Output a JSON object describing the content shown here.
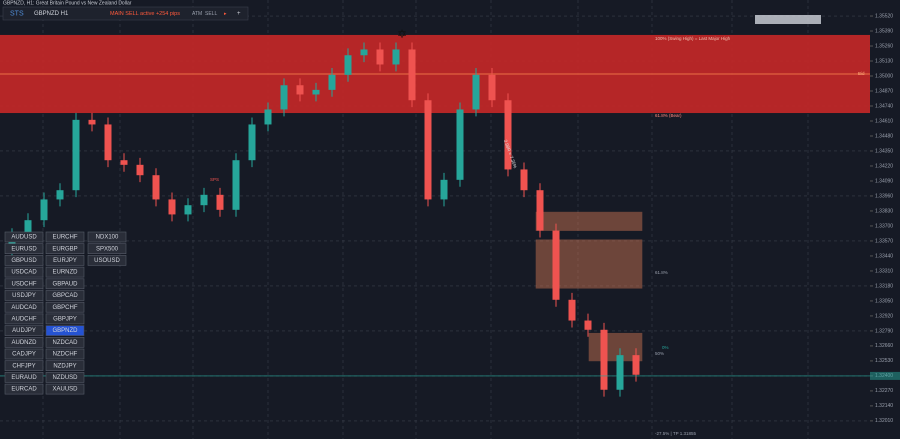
{
  "window_title": "GBPNZD, H1: Great Britain Pound vs New Zealand Dollar",
  "toolbar": {
    "brand": "STS",
    "symbol": "GBPNZD H1",
    "status": "MAIN SELL active +254 pips",
    "mode": "ATM",
    "action": "SELL",
    "add": "+"
  },
  "chart_data": {
    "type": "candlestick",
    "ylim": [
      1.31853,
      1.35659
    ],
    "yticks": [
      {
        "value": 1.3552,
        "label": "1.35520"
      },
      {
        "value": 1.3539,
        "label": "1.35390"
      },
      {
        "value": 1.3526,
        "label": "1.35260"
      },
      {
        "value": 1.3513,
        "label": "1.35130"
      },
      {
        "value": 1.35,
        "label": "1.35000"
      },
      {
        "value": 1.3487,
        "label": "1.34870"
      },
      {
        "value": 1.3474,
        "label": "1.34740"
      },
      {
        "value": 1.3461,
        "label": "1.34610"
      },
      {
        "value": 1.3448,
        "label": "1.34480"
      },
      {
        "value": 1.3435,
        "label": "1.34350"
      },
      {
        "value": 1.3422,
        "label": "1.34220"
      },
      {
        "value": 1.3409,
        "label": "1.34090"
      },
      {
        "value": 1.3396,
        "label": "1.33960"
      },
      {
        "value": 1.3383,
        "label": "1.33830"
      },
      {
        "value": 1.337,
        "label": "1.33700"
      },
      {
        "value": 1.3357,
        "label": "1.33570"
      },
      {
        "value": 1.3344,
        "label": "1.33440"
      },
      {
        "value": 1.3331,
        "label": "1.33310"
      },
      {
        "value": 1.3318,
        "label": "1.33180"
      },
      {
        "value": 1.3305,
        "label": "1.33050"
      },
      {
        "value": 1.3292,
        "label": "1.32920"
      },
      {
        "value": 1.3279,
        "label": "1.32790"
      },
      {
        "value": 1.3266,
        "label": "1.32660"
      },
      {
        "value": 1.3253,
        "label": "1.32530"
      },
      {
        "value": 1.324,
        "label": "1.32400"
      },
      {
        "value": 1.3227,
        "label": "1.32270"
      },
      {
        "value": 1.3214,
        "label": "1.32140"
      },
      {
        "value": 1.3201,
        "label": "1.32010"
      }
    ],
    "candles": [
      [
        1.335,
        1.3368,
        1.3344,
        1.3362
      ],
      [
        1.3362,
        1.3381,
        1.3356,
        1.3375
      ],
      [
        1.3375,
        1.3399,
        1.3369,
        1.3393
      ],
      [
        1.3393,
        1.3407,
        1.3387,
        1.3401
      ],
      [
        1.3401,
        1.3468,
        1.3395,
        1.3462
      ],
      [
        1.3462,
        1.3468,
        1.3452,
        1.3458
      ],
      [
        1.3458,
        1.3464,
        1.3421,
        1.3427
      ],
      [
        1.3427,
        1.3433,
        1.3417,
        1.3423
      ],
      [
        1.3423,
        1.3429,
        1.3408,
        1.3414
      ],
      [
        1.3414,
        1.342,
        1.3387,
        1.3393
      ],
      [
        1.3393,
        1.3399,
        1.3374,
        1.338
      ],
      [
        1.338,
        1.3394,
        1.3374,
        1.3388
      ],
      [
        1.3388,
        1.3403,
        1.3382,
        1.3397
      ],
      [
        1.3397,
        1.3403,
        1.3378,
        1.3384
      ],
      [
        1.3384,
        1.3433,
        1.3378,
        1.3427
      ],
      [
        1.3427,
        1.3464,
        1.3421,
        1.3458
      ],
      [
        1.3458,
        1.3477,
        1.3452,
        1.3471
      ],
      [
        1.3471,
        1.3498,
        1.3465,
        1.3492
      ],
      [
        1.3492,
        1.3498,
        1.3478,
        1.3484
      ],
      [
        1.3484,
        1.3494,
        1.3478,
        1.3488
      ],
      [
        1.3488,
        1.3507,
        1.3482,
        1.3501
      ],
      [
        1.3501,
        1.3524,
        1.3495,
        1.3518
      ],
      [
        1.3518,
        1.3529,
        1.3512,
        1.3523
      ],
      [
        1.3523,
        1.3529,
        1.3504,
        1.351
      ],
      [
        1.351,
        1.3529,
        1.3504,
        1.3523
      ],
      [
        1.3523,
        1.3529,
        1.3473,
        1.3479
      ],
      [
        1.3479,
        1.3485,
        1.3387,
        1.3393
      ],
      [
        1.3393,
        1.3416,
        1.3387,
        1.341
      ],
      [
        1.341,
        1.3477,
        1.3404,
        1.3471
      ],
      [
        1.3471,
        1.3507,
        1.3465,
        1.3501
      ],
      [
        1.3501,
        1.3507,
        1.3473,
        1.3479
      ],
      [
        1.3479,
        1.3485,
        1.3413,
        1.3419
      ],
      [
        1.3419,
        1.3425,
        1.3395,
        1.3401
      ],
      [
        1.3401,
        1.3407,
        1.336,
        1.3366
      ],
      [
        1.3366,
        1.3372,
        1.33,
        1.3306
      ],
      [
        1.3306,
        1.3312,
        1.3282,
        1.3288
      ],
      [
        1.3288,
        1.3294,
        1.3274,
        1.328
      ],
      [
        1.328,
        1.3286,
        1.3222,
        1.3228
      ],
      [
        1.3228,
        1.3264,
        1.3222,
        1.3258
      ],
      [
        1.3258,
        1.3264,
        1.3235,
        1.3241
      ]
    ],
    "up_color": "#26a69a",
    "down_color": "#ef5350",
    "supply_zone": {
      "top": 1.35356,
      "bottom": 1.34679,
      "color": "#c62828"
    },
    "boxes": [
      {
        "top": 1.3382,
        "bottom": 1.3366,
        "from": 33,
        "to": 39
      },
      {
        "top": 1.3358,
        "bottom": 1.3316,
        "from": 33,
        "to": 39
      },
      {
        "top": 1.3277,
        "bottom": 1.3253,
        "from": 36,
        "to": 39
      }
    ],
    "current_price": 1.324,
    "annotations": {
      "high": "100% (Swing High) = Last Major High",
      "bid": "Bid",
      "bear": "61.8% (Bear)",
      "fib618": "61.8%",
      "fib50": "50%",
      "fib0": "0%",
      "tp": "-27.5% | TP 1.31855",
      "rr": "2.98R = 7.35%",
      "sps": "SPS"
    }
  },
  "symbols": {
    "col1": [
      "AUDUSD",
      "EURUSD",
      "GBPUSD",
      "USDCAD",
      "USDCHF",
      "USDJPY",
      "AUDCAD",
      "AUDCHF",
      "AUDJPY",
      "AUDNZD",
      "CADJPY",
      "CHFJPY",
      "EURAUD",
      "EURCAD"
    ],
    "col2": [
      "EURCHF",
      "EURGBP",
      "EURJPY",
      "EURNZD",
      "GBPAUD",
      "GBPCAD",
      "GBPCHF",
      "GBPJPY",
      "GBPNZD",
      "NZDCAD",
      "NZDCHF",
      "NZDJPY",
      "NZDUSD",
      "XAUUSD"
    ],
    "col3": [
      "NDX100",
      "SPX500",
      "USOUSD"
    ],
    "active": "GBPNZD"
  }
}
